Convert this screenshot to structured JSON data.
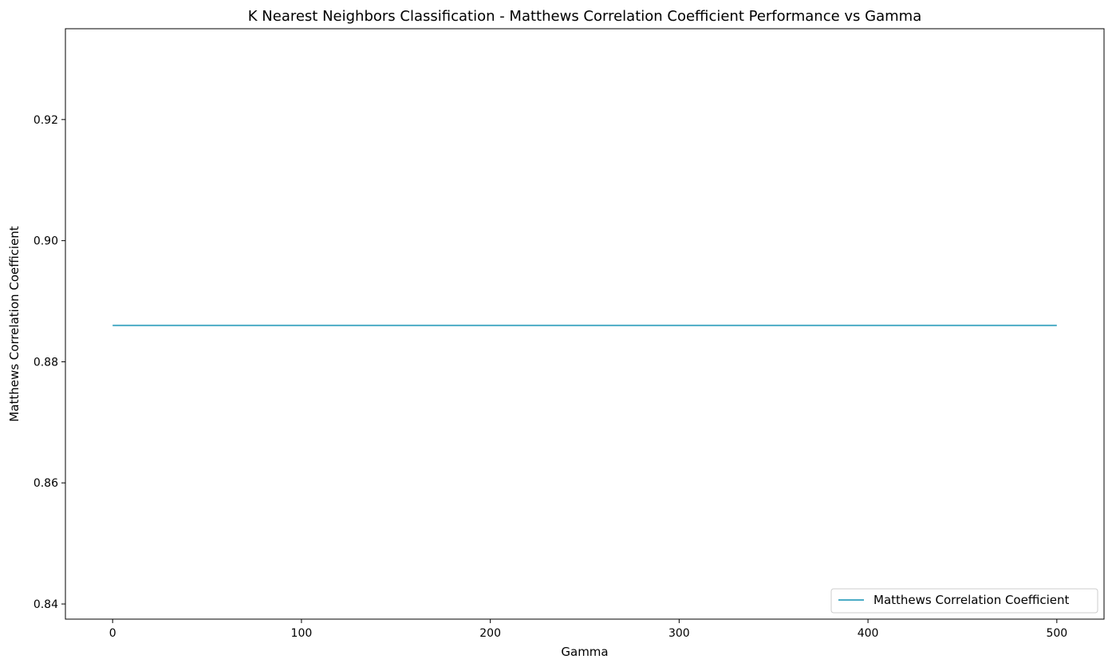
{
  "chart_data": {
    "type": "line",
    "title": "K Nearest Neighbors Classification - Matthews Correlation Coefficient Performance vs Gamma",
    "xlabel": "Gamma",
    "ylabel": "Matthews Correlation Coefficient",
    "xlim": [
      -25,
      525
    ],
    "ylim": [
      0.8375,
      0.935
    ],
    "x_ticks": [
      0,
      100,
      200,
      300,
      400,
      500
    ],
    "x_tick_labels": [
      "0",
      "100",
      "200",
      "300",
      "400",
      "500"
    ],
    "y_ticks": [
      0.84,
      0.86,
      0.88,
      0.9,
      0.92
    ],
    "y_tick_labels": [
      "0.84",
      "0.86",
      "0.88",
      "0.90",
      "0.92"
    ],
    "grid": false,
    "legend_position": "lower-right",
    "series": [
      {
        "name": "Matthews Correlation Coefficient",
        "color": "#4bacc6",
        "x": [
          0,
          50,
          100,
          150,
          200,
          250,
          300,
          350,
          400,
          450,
          500
        ],
        "y": [
          0.886,
          0.886,
          0.886,
          0.886,
          0.886,
          0.886,
          0.886,
          0.886,
          0.886,
          0.886,
          0.886
        ]
      }
    ]
  }
}
